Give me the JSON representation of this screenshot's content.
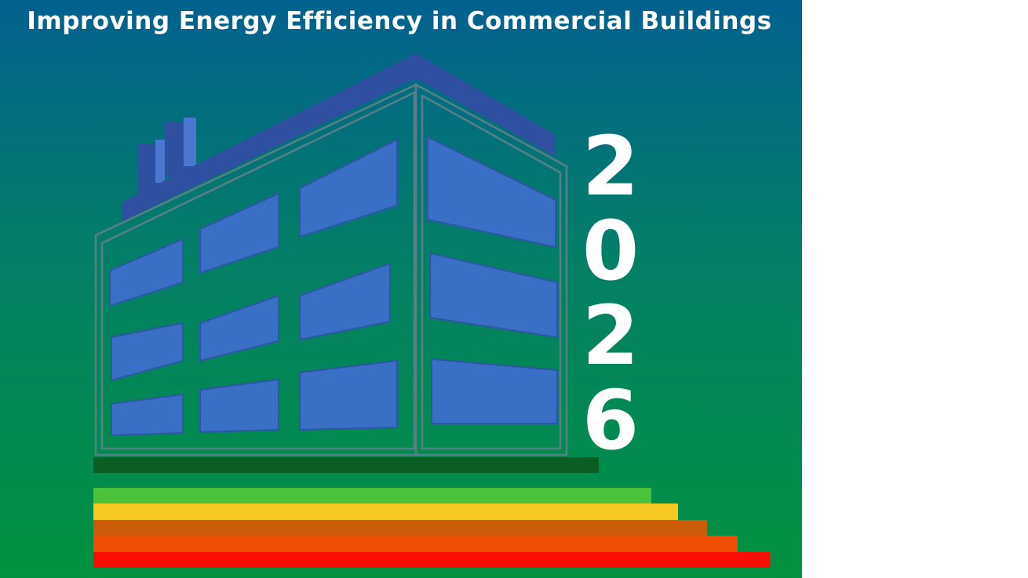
{
  "header": {
    "title": "Improving Energy Efficiency in Commercial Buildings"
  },
  "year_digits": [
    "2",
    "0",
    "2",
    "6"
  ]
}
